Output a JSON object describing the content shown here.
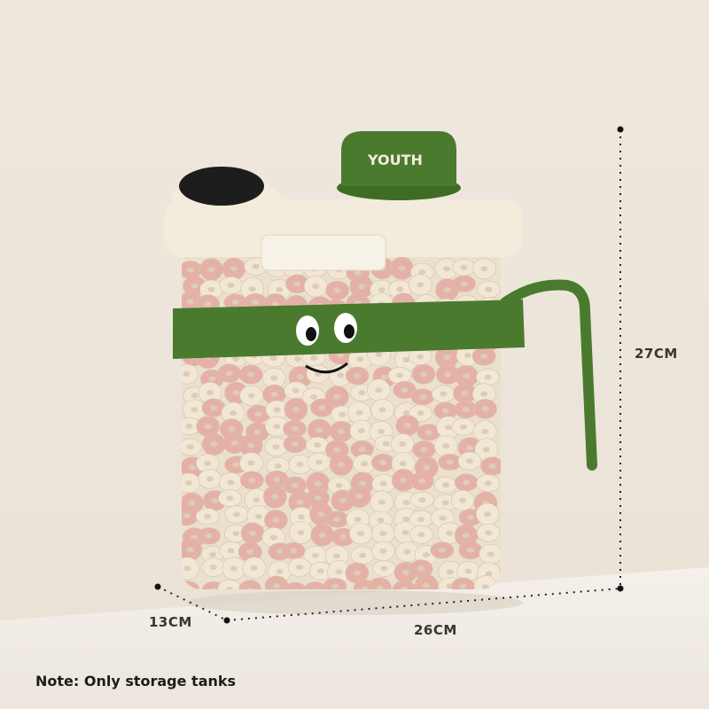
{
  "product": {
    "cap_text": "YOUTH",
    "colors": {
      "green": "#4a7a2e",
      "cream": "#f3ecdd",
      "black": "#1d1d1d",
      "pink": "#e2a79b",
      "ring": "#efe4cf"
    }
  },
  "dimensions": {
    "height": "27CM",
    "width": "26CM",
    "depth": "13CM"
  },
  "note": "Note: Only storage tanks"
}
